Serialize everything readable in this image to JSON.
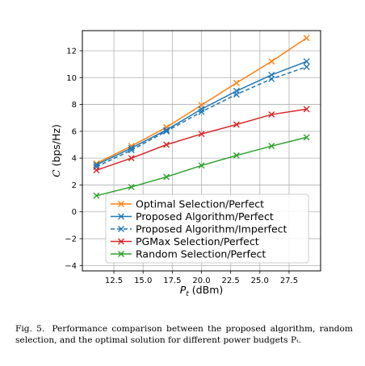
{
  "chart_data": {
    "type": "line",
    "title": "",
    "xlabel": "P_t (dBm)",
    "ylabel": "C (bps/Hz)",
    "xlim": [
      9.8,
      30.2
    ],
    "ylim": [
      -4.4,
      13.5
    ],
    "x_ticks": [
      "12.5",
      "15.0",
      "17.5",
      "20.0",
      "22.5",
      "25.0",
      "27.5"
    ],
    "y_ticks": [
      "−4",
      "−2",
      "0",
      "2",
      "4",
      "6",
      "8",
      "10",
      "12"
    ],
    "grid": true,
    "legend_position": "lower-right",
    "x": [
      11,
      14,
      17,
      20,
      23,
      26,
      29
    ],
    "series": [
      {
        "name": "Optimal Selection/Perfect",
        "values": [
          3.6,
          4.9,
          6.3,
          7.95,
          9.6,
          11.2,
          12.95
        ],
        "color": "#ff7f0e",
        "dash": "solid",
        "marker": "x"
      },
      {
        "name": "Proposed Algorithm/Perfect",
        "values": [
          3.5,
          4.75,
          6.1,
          7.65,
          9.0,
          10.2,
          11.2
        ],
        "color": "#1f77b4",
        "dash": "solid",
        "marker": "x"
      },
      {
        "name": "Proposed Algorithm/Imperfect",
        "values": [
          3.35,
          4.6,
          6.0,
          7.45,
          8.75,
          9.9,
          10.8
        ],
        "color": "#1f77b4",
        "dash": "dashed",
        "marker": "x"
      },
      {
        "name": "PGMax Selection/Perfect",
        "values": [
          3.1,
          4.0,
          5.0,
          5.8,
          6.5,
          7.25,
          7.65
        ],
        "color": "#d62728",
        "dash": "solid",
        "marker": "x"
      },
      {
        "name": "Random Selection/Perfect",
        "values": [
          1.2,
          1.85,
          2.6,
          3.45,
          4.2,
          4.9,
          5.55
        ],
        "color": "#2ca02c",
        "dash": "solid",
        "marker": "x"
      }
    ]
  },
  "caption": {
    "figure_label": "Fig. 5.",
    "text": "Performance comparison between the proposed algorithm, random selection, and the optimal solution for different power budgets Pₜ."
  }
}
